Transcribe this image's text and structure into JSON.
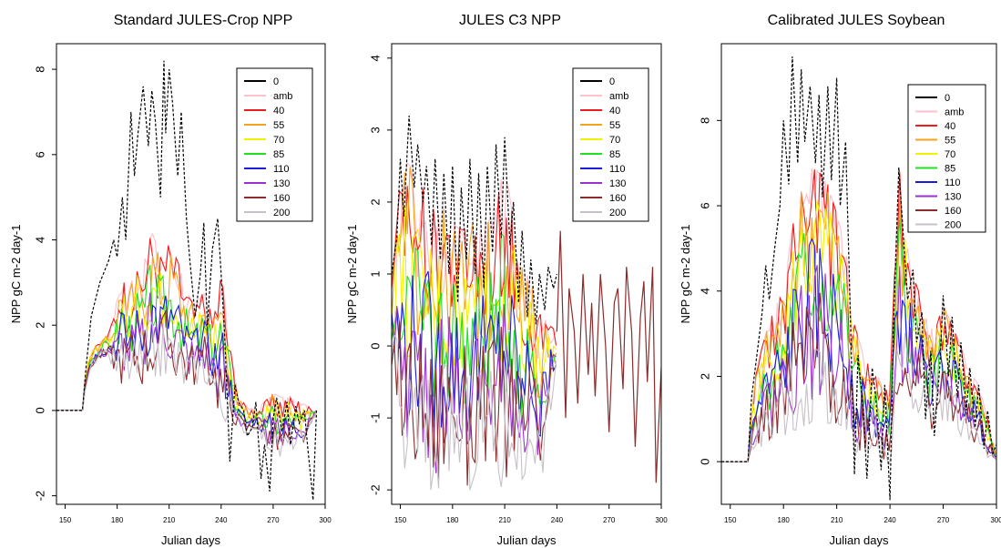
{
  "series_colors": {
    "0": "#000000",
    "amb": "#ffc0cb",
    "40": "#ee1c1c",
    "55": "#f5a21c",
    "70": "#f2f200",
    "85": "#22e022",
    "110": "#1c1cdc",
    "130": "#9a32cd",
    "160": "#8b2c2c",
    "200": "#c8c0c8"
  },
  "chart_data": [
    {
      "type": "line",
      "title": "Standard JULES-Crop NPP",
      "xlabel": "Julian days",
      "ylabel": "NPP gC m-2 day-1",
      "xlim": [
        145,
        300
      ],
      "ylim": [
        -2.2,
        8.6
      ],
      "xticks": [
        150,
        180,
        210,
        240,
        270,
        300
      ],
      "yticks": [
        -2,
        0,
        2,
        4,
        6,
        8
      ],
      "legend": {
        "position": "top-right",
        "entries": [
          "0",
          "amb",
          "40",
          "55",
          "70",
          "85",
          "110",
          "130",
          "160",
          "200"
        ]
      },
      "series": [
        {
          "name": "0",
          "style": "dashed",
          "x": [
            145,
            160,
            162,
            165,
            170,
            175,
            178,
            180,
            183,
            185,
            188,
            190,
            192,
            195,
            198,
            200,
            202,
            205,
            207,
            208,
            210,
            212,
            214,
            215,
            217,
            220,
            222,
            225,
            228,
            230,
            232,
            235,
            238,
            240,
            242,
            245,
            248,
            250,
            253,
            255,
            258,
            260,
            263,
            265,
            268,
            270,
            272,
            275,
            278,
            280,
            283,
            285,
            288,
            290,
            293,
            295
          ],
          "y": [
            0,
            0,
            1.0,
            2.2,
            3.0,
            3.5,
            4.0,
            3.6,
            5.0,
            4.0,
            7.0,
            5.5,
            6.5,
            7.6,
            6.2,
            7.5,
            6.8,
            5.0,
            8.2,
            6.5,
            8.0,
            7.2,
            6.0,
            5.5,
            7.0,
            4.5,
            3.5,
            2.2,
            3.2,
            4.4,
            2.0,
            3.8,
            4.5,
            3.2,
            1.8,
            -1.2,
            0.6,
            0.2,
            0.0,
            -0.6,
            -0.4,
            0.2,
            -1.6,
            -0.8,
            -1.9,
            -0.2,
            0.3,
            -0.5,
            0.2,
            -0.8,
            0.1,
            -0.3,
            0.0,
            -0.9,
            -2.1,
            0
          ]
        }
      ],
      "band": {
        "x": [
          145,
          160,
          162,
          165,
          170,
          175,
          180,
          183,
          185,
          188,
          190,
          195,
          200,
          205,
          210,
          215,
          220,
          225,
          230,
          235,
          240,
          245,
          250,
          255,
          260,
          265,
          270,
          275,
          280,
          285,
          290,
          295
        ],
        "upper": [
          0,
          0,
          1.0,
          1.4,
          1.6,
          1.8,
          2.6,
          3.5,
          2.5,
          3.0,
          3.2,
          3.4,
          4.2,
          3.6,
          3.9,
          3.5,
          2.8,
          2.4,
          2.8,
          2.2,
          3.3,
          1.5,
          0.3,
          0.1,
          0.0,
          0.2,
          0.4,
          0.3,
          0.3,
          0.2,
          0.1,
          0
        ],
        "lower": [
          0,
          0,
          0.6,
          1.0,
          1.2,
          1.2,
          0.8,
          0.6,
          0.8,
          0.7,
          0.7,
          0.6,
          0.8,
          0.8,
          0.9,
          0.7,
          0.6,
          0.6,
          0.7,
          0.5,
          -0.3,
          -0.2,
          -0.4,
          -0.6,
          -0.4,
          -0.8,
          -1.0,
          -1.1,
          -0.9,
          -0.9,
          -0.7,
          0
        ]
      }
    },
    {
      "type": "line",
      "title": "JULES C3 NPP",
      "xlabel": "Julian days",
      "ylabel": "NPP gC m-2 day-1",
      "xlim": [
        145,
        300
      ],
      "ylim": [
        -2.2,
        4.2
      ],
      "xticks": [
        150,
        180,
        210,
        240,
        270,
        300
      ],
      "yticks": [
        -2,
        -1,
        0,
        1,
        2,
        3,
        4
      ],
      "legend": {
        "position": "top-right",
        "entries": [
          "0",
          "amb",
          "40",
          "55",
          "70",
          "85",
          "110",
          "130",
          "160",
          "200"
        ]
      },
      "series": [
        {
          "name": "0",
          "style": "dashed",
          "x": [
            145,
            148,
            150,
            152,
            155,
            158,
            160,
            163,
            165,
            168,
            170,
            173,
            175,
            178,
            180,
            183,
            185,
            188,
            190,
            193,
            195,
            198,
            200,
            203,
            205,
            208,
            210,
            213,
            215,
            218,
            220,
            223,
            225,
            228,
            230,
            233,
            235,
            238,
            240
          ],
          "y": [
            1.0,
            1.5,
            2.6,
            1.8,
            3.2,
            2.2,
            2.8,
            2.0,
            2.5,
            1.4,
            2.6,
            1.2,
            2.4,
            1.0,
            2.5,
            0.6,
            2.2,
            1.2,
            2.6,
            1.0,
            2.4,
            0.8,
            2.5,
            1.3,
            2.8,
            1.5,
            2.9,
            1.4,
            2.0,
            0.6,
            1.6,
            0.4,
            1.2,
            0.3,
            1.0,
            0.5,
            1.1,
            0.8,
            1.0
          ]
        },
        {
          "name": "160",
          "x": [
            240,
            242,
            245,
            247,
            250,
            252,
            255,
            258,
            260,
            262,
            265,
            268,
            270,
            273,
            275,
            278,
            280,
            283,
            285,
            288,
            290,
            292,
            295,
            297,
            300
          ],
          "y": [
            0.2,
            1.6,
            -1.0,
            0.8,
            0.2,
            -0.8,
            1.0,
            -0.4,
            0.6,
            -0.7,
            1.0,
            0.0,
            -1.2,
            0.6,
            0.8,
            -0.6,
            1.1,
            0.2,
            -1.4,
            0.4,
            0.9,
            -0.5,
            1.1,
            -1.9,
            -0.3
          ]
        }
      ],
      "band": {
        "x": [
          145,
          150,
          155,
          160,
          165,
          170,
          175,
          180,
          185,
          190,
          195,
          200,
          205,
          210,
          215,
          220,
          225,
          230,
          235,
          240
        ],
        "upper": [
          0.8,
          2.3,
          2.6,
          2.0,
          2.3,
          1.8,
          1.9,
          1.7,
          1.6,
          1.8,
          1.6,
          1.7,
          1.9,
          2.6,
          1.7,
          1.1,
          0.9,
          0.5,
          0.3,
          0.2
        ],
        "lower": [
          -0.3,
          -1.4,
          -2.0,
          -1.6,
          -1.9,
          -2.1,
          -1.8,
          -1.7,
          -1.8,
          -2.0,
          -1.6,
          -1.6,
          -1.9,
          -2.0,
          -1.4,
          -2.2,
          -1.2,
          -2.2,
          -1.1,
          -0.4
        ]
      }
    },
    {
      "type": "line",
      "title": "Calibrated JULES Soybean",
      "xlabel": "Julian days",
      "ylabel": "NPP gC m-2 day-1",
      "xlim": [
        145,
        300
      ],
      "ylim": [
        -1.0,
        9.8
      ],
      "xticks": [
        150,
        180,
        210,
        240,
        270,
        300
      ],
      "yticks": [
        0,
        2,
        4,
        6,
        8
      ],
      "legend": {
        "position": "top-right",
        "entries": [
          "0",
          "amb",
          "40",
          "55",
          "70",
          "85",
          "110",
          "130",
          "160",
          "200"
        ]
      },
      "series": [
        {
          "name": "0",
          "style": "dashed",
          "x": [
            145,
            160,
            162,
            165,
            168,
            170,
            172,
            175,
            178,
            180,
            183,
            185,
            188,
            190,
            192,
            195,
            198,
            200,
            202,
            205,
            207,
            210,
            212,
            215,
            217,
            220,
            222,
            225,
            227,
            230,
            232,
            235,
            237,
            240,
            242,
            245,
            248,
            250,
            253,
            255,
            258,
            260,
            263,
            265,
            268,
            270,
            273,
            275,
            278,
            280,
            283,
            285,
            288,
            290,
            293,
            295,
            298,
            300
          ],
          "y": [
            0,
            0,
            1.5,
            2.5,
            3.5,
            4.6,
            3.8,
            5.0,
            6.0,
            8.0,
            6.5,
            9.5,
            7.0,
            9.2,
            7.5,
            8.8,
            7.0,
            8.6,
            6.2,
            8.8,
            6.6,
            9.0,
            6.0,
            7.5,
            4.5,
            -0.3,
            2.5,
            1.2,
            -0.4,
            2.2,
            1.5,
            -0.2,
            1.8,
            -0.9,
            3.2,
            6.9,
            5.0,
            3.8,
            4.5,
            2.8,
            3.5,
            1.0,
            2.6,
            0.6,
            2.2,
            3.9,
            2.0,
            3.4,
            1.5,
            2.8,
            1.2,
            2.2,
            0.8,
            1.8,
            0.3,
            1.2,
            0.2,
            0.4
          ]
        }
      ],
      "band": {
        "x": [
          145,
          160,
          162,
          165,
          170,
          175,
          180,
          185,
          190,
          195,
          200,
          205,
          210,
          215,
          220,
          225,
          230,
          235,
          240,
          245,
          250,
          255,
          260,
          265,
          270,
          275,
          280,
          285,
          290,
          295,
          300
        ],
        "upper": [
          0,
          0,
          1.3,
          2.2,
          3.0,
          3.6,
          4.0,
          5.5,
          6.5,
          6.9,
          6.8,
          6.5,
          5.8,
          5.0,
          3.2,
          2.5,
          2.1,
          1.9,
          1.7,
          7.0,
          5.0,
          4.2,
          3.4,
          3.0,
          3.7,
          3.2,
          2.7,
          2.1,
          1.8,
          1.0,
          0.1
        ],
        "lower": [
          0,
          0,
          0.3,
          0.3,
          0.4,
          0.5,
          0.6,
          0.7,
          0.8,
          0.9,
          1.0,
          0.9,
          0.9,
          0.8,
          0.2,
          0.3,
          0.2,
          0.1,
          -0.1,
          1.5,
          1.3,
          1.2,
          0.9,
          0.7,
          1.0,
          0.9,
          0.6,
          0.5,
          0.4,
          0.1,
          0.0
        ]
      }
    }
  ]
}
